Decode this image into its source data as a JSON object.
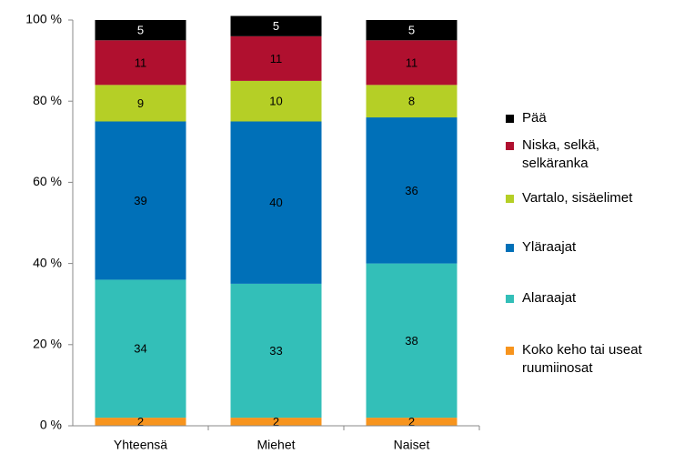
{
  "chart_data": {
    "type": "stacked_bar",
    "categories": [
      "Yhteensä",
      "Miehet",
      "Naiset"
    ],
    "series": [
      {
        "name": "Koko keho tai useat ruumiinosat",
        "color": "#f7941d",
        "values": [
          2,
          2,
          2
        ]
      },
      {
        "name": "Alaraajat",
        "color": "#33bfb8",
        "values": [
          34,
          33,
          38
        ]
      },
      {
        "name": "Yläraajat",
        "color": "#0070b8",
        "values": [
          39,
          40,
          36
        ]
      },
      {
        "name": "Vartalo, sisäelimet",
        "color": "#b5cf26",
        "values": [
          9,
          10,
          8
        ]
      },
      {
        "name": "Niska, selkä, selkäranka",
        "color": "#b0102f",
        "values": [
          11,
          11,
          11
        ]
      },
      {
        "name": "Pää",
        "color": "#000000",
        "values": [
          5,
          5,
          5
        ]
      }
    ],
    "ylim": [
      0,
      100
    ],
    "yticks": [
      {
        "value": 0,
        "label": "0 %"
      },
      {
        "value": 20,
        "label": "20 %"
      },
      {
        "value": 40,
        "label": "40 %"
      },
      {
        "value": 60,
        "label": "60 %"
      },
      {
        "value": 80,
        "label": "80 %"
      },
      {
        "value": 100,
        "label": "100 %"
      }
    ],
    "grid": false,
    "legend": "right"
  }
}
